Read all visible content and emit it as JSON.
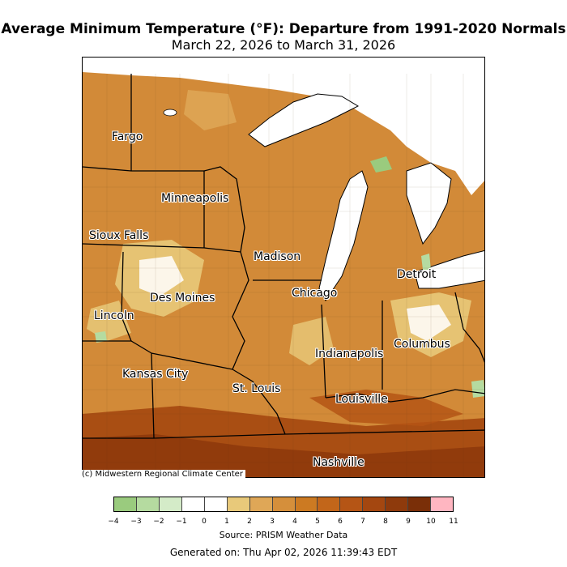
{
  "title": "Average Minimum Temperature (°F): Departure from 1991-2020 Normals",
  "subtitle": "March 22, 2026 to March 31, 2026",
  "copyright": "(c) Midwestern Regional Climate Center",
  "source": "Source: PRISM Weather Data",
  "generated": "Generated on: Thu Apr 02, 2026 11:39:43 EDT",
  "cities": [
    {
      "id": "fargo",
      "name": "Fargo"
    },
    {
      "id": "minneapolis",
      "name": "Minneapolis"
    },
    {
      "id": "sioux-falls",
      "name": "Sioux Falls"
    },
    {
      "id": "madison",
      "name": "Madison"
    },
    {
      "id": "detroit",
      "name": "Detroit"
    },
    {
      "id": "chicago",
      "name": "Chicago"
    },
    {
      "id": "des-moines",
      "name": "Des Moines"
    },
    {
      "id": "lincoln",
      "name": "Lincoln"
    },
    {
      "id": "columbus",
      "name": "Columbus"
    },
    {
      "id": "indianapolis",
      "name": "Indianapolis"
    },
    {
      "id": "kansas-city",
      "name": "Kansas City"
    },
    {
      "id": "st-louis",
      "name": "St. Louis"
    },
    {
      "id": "louisville",
      "name": "Louisville"
    },
    {
      "id": "nashville",
      "name": "Nashville"
    }
  ],
  "legend": {
    "ticks": [
      "−4",
      "−3",
      "−2",
      "−1",
      "0",
      "1",
      "2",
      "3",
      "4",
      "5",
      "6",
      "7",
      "8",
      "9",
      "10",
      "11"
    ],
    "colors": [
      "#9acb7e",
      "#b5dba0",
      "#d4ebc8",
      "#ffffff",
      "#ffffff",
      "#e8c97a",
      "#dfa757",
      "#d58f3b",
      "#cc7a22",
      "#c2661a",
      "#b55515",
      "#a44710",
      "#8e3a0c",
      "#7a2f08",
      "#ffb6c1"
    ]
  },
  "colors": {
    "water": "#ffffff",
    "land_base": "#d28a38"
  }
}
